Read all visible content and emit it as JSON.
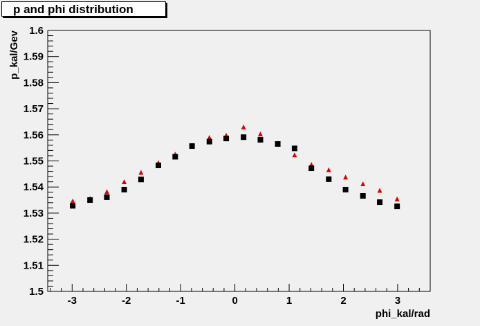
{
  "chart_data": {
    "type": "scatter",
    "title": "p and phi distribution",
    "xlabel": "phi_kal/rad",
    "ylabel": "p_kal/Gev",
    "xlim": [
      -3.45,
      3.6
    ],
    "ylim": [
      1.5,
      1.6
    ],
    "xticks": [
      -3,
      -2,
      -1,
      0,
      1,
      2,
      3
    ],
    "xtick_labels": [
      "-3",
      "-2",
      "-1",
      "0",
      "1",
      "2",
      "3"
    ],
    "yticks": [
      1.5,
      1.51,
      1.52,
      1.53,
      1.54,
      1.55,
      1.56,
      1.57,
      1.58,
      1.59,
      1.6
    ],
    "ytick_labels": [
      "1.5",
      "1.51",
      "1.52",
      "1.53",
      "1.54",
      "1.55",
      "1.56",
      "1.57",
      "1.58",
      "1.59",
      "1.6"
    ],
    "grid": false,
    "series": [
      {
        "marker": "triangle",
        "color": "#e00000",
        "x": [
          -2.99,
          -2.67,
          -2.36,
          -2.04,
          -1.73,
          -1.41,
          -1.1,
          -0.79,
          -0.47,
          -0.16,
          0.16,
          0.47,
          0.79,
          1.1,
          1.41,
          1.73,
          2.04,
          2.36,
          2.67,
          2.99
        ],
        "y": [
          1.5345,
          1.5355,
          1.5381,
          1.5419,
          1.5455,
          1.5492,
          1.5525,
          1.5558,
          1.5589,
          1.5597,
          1.5629,
          1.5602,
          1.5566,
          1.5522,
          1.5485,
          1.5465,
          1.5437,
          1.5411,
          1.5386,
          1.5353
        ]
      },
      {
        "marker": "square",
        "color": "#000000",
        "x": [
          -2.99,
          -2.67,
          -2.36,
          -2.04,
          -1.73,
          -1.41,
          -1.1,
          -0.79,
          -0.47,
          -0.16,
          0.16,
          0.47,
          0.79,
          1.1,
          1.41,
          1.73,
          2.04,
          2.36,
          2.67,
          2.99
        ],
        "y": [
          1.5328,
          1.535,
          1.5361,
          1.539,
          1.5429,
          1.5483,
          1.5516,
          1.5557,
          1.5574,
          1.5586,
          1.5591,
          1.5581,
          1.5565,
          1.5548,
          1.5472,
          1.543,
          1.539,
          1.5366,
          1.5342,
          1.5326
        ]
      }
    ]
  }
}
